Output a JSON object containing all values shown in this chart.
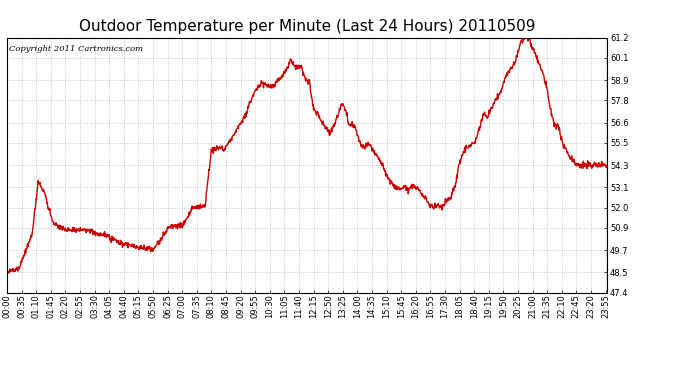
{
  "title": "Outdoor Temperature per Minute (Last 24 Hours) 20110509",
  "copyright": "Copyright 2011 Cartronics.com",
  "line_color": "#cc0000",
  "background_color": "#ffffff",
  "plot_bg_color": "#ffffff",
  "grid_color": "#bbbbbb",
  "ylim": [
    47.4,
    61.2
  ],
  "yticks": [
    47.4,
    48.5,
    49.7,
    50.9,
    52.0,
    53.1,
    54.3,
    55.5,
    56.6,
    57.8,
    58.9,
    60.1,
    61.2
  ],
  "xtick_labels": [
    "00:00",
    "00:35",
    "01:10",
    "01:45",
    "02:20",
    "02:55",
    "03:30",
    "04:05",
    "04:40",
    "05:15",
    "05:50",
    "06:25",
    "07:00",
    "07:35",
    "08:10",
    "08:45",
    "09:20",
    "09:55",
    "10:30",
    "11:05",
    "11:40",
    "12:15",
    "12:50",
    "13:25",
    "14:00",
    "14:35",
    "15:10",
    "15:45",
    "16:20",
    "16:55",
    "17:30",
    "18:05",
    "18:40",
    "19:15",
    "19:50",
    "20:25",
    "21:00",
    "21:35",
    "22:10",
    "22:45",
    "23:20",
    "23:55"
  ],
  "title_fontsize": 11,
  "axis_fontsize": 6,
  "copyright_fontsize": 6,
  "line_width": 1.0,
  "keypoints": [
    [
      0,
      48.5
    ],
    [
      30,
      48.8
    ],
    [
      60,
      50.5
    ],
    [
      75,
      53.4
    ],
    [
      90,
      52.8
    ],
    [
      110,
      51.2
    ],
    [
      140,
      50.8
    ],
    [
      160,
      50.8
    ],
    [
      180,
      50.8
    ],
    [
      200,
      50.7
    ],
    [
      220,
      50.6
    ],
    [
      240,
      50.5
    ],
    [
      270,
      50.1
    ],
    [
      300,
      49.9
    ],
    [
      330,
      49.8
    ],
    [
      350,
      49.7
    ],
    [
      360,
      50.0
    ],
    [
      390,
      51.0
    ],
    [
      420,
      51.0
    ],
    [
      445,
      52.0
    ],
    [
      450,
      52.0
    ],
    [
      465,
      52.1
    ],
    [
      475,
      52.1
    ],
    [
      490,
      55.1
    ],
    [
      510,
      55.3
    ],
    [
      520,
      55.1
    ],
    [
      530,
      55.5
    ],
    [
      545,
      56.0
    ],
    [
      555,
      56.4
    ],
    [
      565,
      56.7
    ],
    [
      575,
      57.2
    ],
    [
      585,
      57.8
    ],
    [
      600,
      58.5
    ],
    [
      610,
      58.8
    ],
    [
      620,
      58.6
    ],
    [
      630,
      58.5
    ],
    [
      640,
      58.6
    ],
    [
      650,
      58.9
    ],
    [
      665,
      59.2
    ],
    [
      680,
      60.0
    ],
    [
      695,
      59.5
    ],
    [
      705,
      59.6
    ],
    [
      715,
      59.0
    ],
    [
      725,
      58.8
    ],
    [
      735,
      57.4
    ],
    [
      748,
      56.9
    ],
    [
      758,
      56.5
    ],
    [
      768,
      56.2
    ],
    [
      775,
      56.0
    ],
    [
      782,
      56.4
    ],
    [
      792,
      56.9
    ],
    [
      798,
      57.4
    ],
    [
      803,
      57.6
    ],
    [
      812,
      57.3
    ],
    [
      820,
      56.5
    ],
    [
      835,
      56.4
    ],
    [
      848,
      55.4
    ],
    [
      858,
      55.2
    ],
    [
      868,
      55.5
    ],
    [
      878,
      55.0
    ],
    [
      888,
      54.8
    ],
    [
      898,
      54.4
    ],
    [
      910,
      53.7
    ],
    [
      920,
      53.4
    ],
    [
      930,
      53.1
    ],
    [
      942,
      53.0
    ],
    [
      952,
      53.1
    ],
    [
      962,
      52.9
    ],
    [
      972,
      53.2
    ],
    [
      982,
      53.1
    ],
    [
      992,
      52.8
    ],
    [
      1002,
      52.5
    ],
    [
      1012,
      52.2
    ],
    [
      1022,
      52.1
    ],
    [
      1032,
      52.1
    ],
    [
      1042,
      52.0
    ],
    [
      1055,
      52.4
    ],
    [
      1062,
      52.5
    ],
    [
      1075,
      53.2
    ],
    [
      1082,
      54.2
    ],
    [
      1092,
      54.9
    ],
    [
      1102,
      55.2
    ],
    [
      1112,
      55.4
    ],
    [
      1122,
      55.5
    ],
    [
      1132,
      56.3
    ],
    [
      1142,
      57.0
    ],
    [
      1152,
      56.9
    ],
    [
      1162,
      57.4
    ],
    [
      1172,
      57.9
    ],
    [
      1182,
      58.2
    ],
    [
      1192,
      58.8
    ],
    [
      1202,
      59.4
    ],
    [
      1212,
      59.6
    ],
    [
      1218,
      59.9
    ],
    [
      1225,
      60.4
    ],
    [
      1232,
      60.9
    ],
    [
      1242,
      61.2
    ],
    [
      1252,
      61.2
    ],
    [
      1257,
      60.7
    ],
    [
      1262,
      60.6
    ],
    [
      1267,
      60.3
    ],
    [
      1272,
      59.9
    ],
    [
      1277,
      59.7
    ],
    [
      1282,
      59.4
    ],
    [
      1292,
      58.7
    ],
    [
      1302,
      57.4
    ],
    [
      1312,
      56.5
    ],
    [
      1322,
      56.4
    ],
    [
      1332,
      55.4
    ],
    [
      1342,
      55.1
    ],
    [
      1352,
      54.7
    ],
    [
      1362,
      54.4
    ],
    [
      1372,
      54.3
    ],
    [
      1439,
      54.3
    ]
  ]
}
